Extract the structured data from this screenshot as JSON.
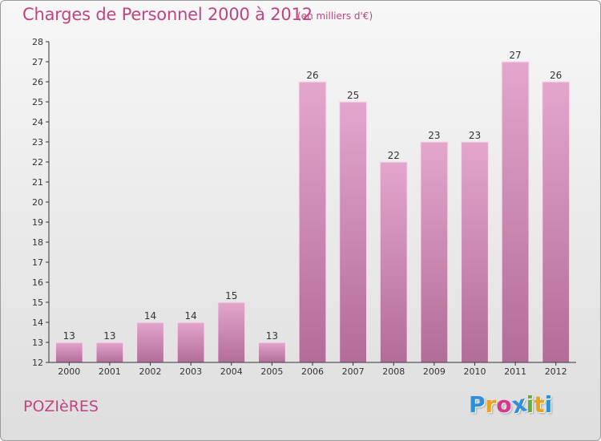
{
  "header": {
    "title": "Charges de Personnel 2000 à 2012",
    "subtitle": "(en milliers d'€)"
  },
  "footer": {
    "commune": "POZIèRES",
    "logo_letters": [
      "P",
      "r",
      "o",
      "x",
      "i",
      "t",
      "i"
    ],
    "logo_colors": [
      "#2f8fd8",
      "#e8a21c",
      "#d8388a",
      "#2f8fd8",
      "#5cb33a",
      "#e8a21c",
      "#2f8fd8"
    ]
  },
  "colors": {
    "bar_top": "#e3a6cd",
    "bar_bottom": "#b26c98",
    "bar_edge": "#f4dcea",
    "axis": "#333333",
    "text": "#333333"
  },
  "chart_data": {
    "type": "bar",
    "categories": [
      "2000",
      "2001",
      "2002",
      "2003",
      "2004",
      "2005",
      "2006",
      "2007",
      "2008",
      "2009",
      "2010",
      "2011",
      "2012"
    ],
    "values": [
      13,
      13,
      14,
      14,
      15,
      13,
      26,
      25,
      22,
      23,
      23,
      27,
      26
    ],
    "title": "Charges de Personnel 2000 à 2012",
    "ylim": [
      12,
      28
    ],
    "yticks": [
      12,
      13,
      14,
      15,
      16,
      17,
      18,
      19,
      20,
      21,
      22,
      23,
      24,
      25,
      26,
      27,
      28
    ],
    "grid": false,
    "legend": "none"
  }
}
